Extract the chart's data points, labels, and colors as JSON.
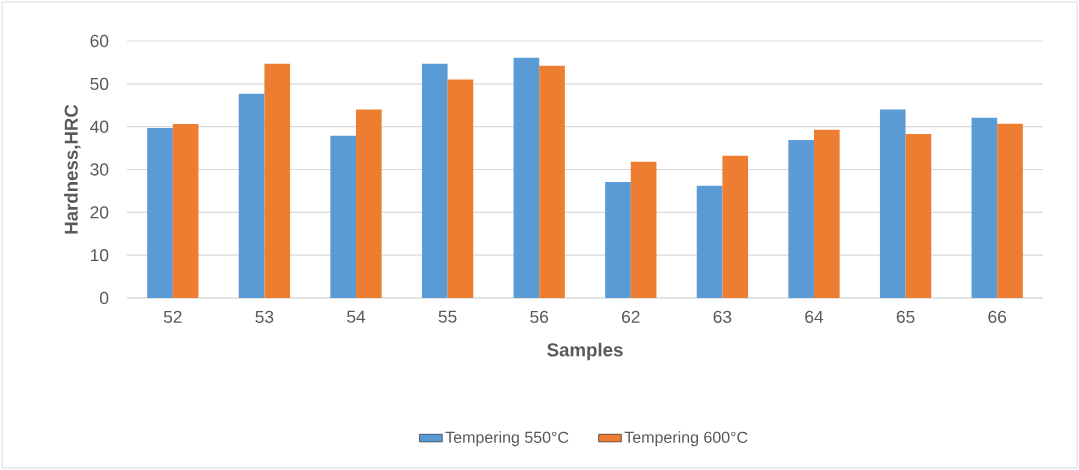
{
  "chart_data": {
    "type": "bar",
    "xlabel": "Samples",
    "ylabel": "Hardness,HRC",
    "categories": [
      "52",
      "53",
      "54",
      "55",
      "56",
      "62",
      "63",
      "64",
      "65",
      "66"
    ],
    "series": [
      {
        "name": "Tempering 550°C",
        "color": "#5b9bd5",
        "values": [
          39.7,
          47.7,
          37.9,
          54.7,
          56.1,
          27.1,
          26.2,
          36.9,
          44.0,
          42.1
        ]
      },
      {
        "name": "Tempering 600°C",
        "color": "#ed7d31",
        "values": [
          40.6,
          54.7,
          44.0,
          51.0,
          54.2,
          31.8,
          33.2,
          39.3,
          38.3,
          40.7
        ]
      }
    ],
    "ylim": [
      0,
      60
    ],
    "yticks": [
      0,
      10,
      20,
      30,
      40,
      50,
      60
    ],
    "grid": "y",
    "legend": "bottom"
  }
}
